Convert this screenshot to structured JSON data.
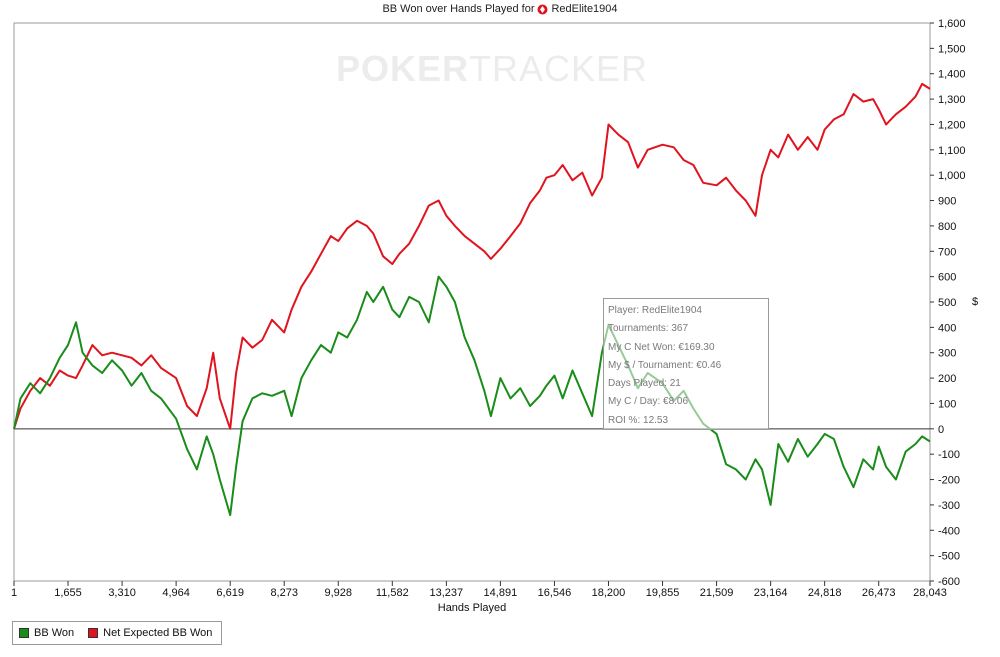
{
  "title": "BB Won over Hands Played for",
  "player_name": "RedElite1904",
  "watermark": {
    "bold": "POKER",
    "light": "TRACKER"
  },
  "tooltip": {
    "lines": [
      "Player: RedElite1904",
      "Tournaments: 367",
      "My C Net Won: €169.30",
      "My $ / Tournament: €0.46",
      "Days Played: 21",
      "My C / Day: €8.06",
      "ROI %: 12.53"
    ]
  },
  "legend": {
    "items": [
      {
        "label": "BB Won",
        "color": "#1a8c1a"
      },
      {
        "label": "Net Expected BB Won",
        "color": "#e0141e"
      }
    ]
  },
  "chart_data": {
    "type": "line",
    "title": "BB Won over Hands Played for RedElite1904",
    "xlabel": "Hands Played",
    "ylabel": "$",
    "xlim": [
      1,
      28043
    ],
    "ylim": [
      -600,
      1600
    ],
    "x_ticks": [
      "1",
      "1,655",
      "3,310",
      "4,964",
      "6,619",
      "8,273",
      "9,928",
      "11,582",
      "13,237",
      "14,891",
      "16,546",
      "18,200",
      "19,855",
      "21,509",
      "23,164",
      "24,818",
      "26,473",
      "28,043"
    ],
    "y_ticks": [
      "-600",
      "-500",
      "-400",
      "-300",
      "-200",
      "-100",
      "0",
      "100",
      "200",
      "300",
      "400",
      "500",
      "600",
      "700",
      "800",
      "900",
      "1,000",
      "1,100",
      "1,200",
      "1,300",
      "1,400",
      "1,500",
      "1,600"
    ],
    "legend_position": "bottom-left",
    "grid": false,
    "series": [
      {
        "name": "BB Won",
        "color": "#1a8c1a",
        "x": [
          1,
          200,
          500,
          800,
          1100,
          1400,
          1655,
          1900,
          2100,
          2400,
          2700,
          3000,
          3310,
          3600,
          3900,
          4200,
          4500,
          4964,
          5300,
          5600,
          5900,
          6100,
          6300,
          6619,
          6800,
          7000,
          7300,
          7600,
          7900,
          8273,
          8500,
          8800,
          9100,
          9400,
          9700,
          9928,
          10200,
          10500,
          10800,
          11000,
          11300,
          11582,
          11800,
          12100,
          12400,
          12700,
          13000,
          13237,
          13500,
          13800,
          14100,
          14400,
          14600,
          14891,
          15200,
          15500,
          15800,
          16100,
          16300,
          16546,
          16800,
          17100,
          17400,
          17700,
          18000,
          18200,
          18500,
          18800,
          19100,
          19400,
          19855,
          20200,
          20500,
          20800,
          21100,
          21509,
          21800,
          22100,
          22400,
          22700,
          22900,
          23164,
          23400,
          23700,
          24000,
          24300,
          24600,
          24818,
          25100,
          25400,
          25700,
          26000,
          26300,
          26473,
          26700,
          27000,
          27300,
          27600,
          27800,
          28043
        ],
        "y": [
          0,
          120,
          180,
          140,
          200,
          280,
          330,
          420,
          300,
          250,
          220,
          270,
          230,
          170,
          220,
          150,
          120,
          40,
          -80,
          -160,
          -30,
          -100,
          -200,
          -340,
          -150,
          30,
          120,
          140,
          130,
          150,
          50,
          200,
          270,
          330,
          300,
          380,
          360,
          430,
          540,
          500,
          560,
          470,
          440,
          520,
          500,
          420,
          600,
          560,
          500,
          360,
          270,
          150,
          50,
          200,
          120,
          160,
          90,
          130,
          170,
          210,
          120,
          230,
          140,
          50,
          300,
          410,
          330,
          250,
          160,
          220,
          180,
          110,
          150,
          80,
          20,
          -20,
          -140,
          -160,
          -200,
          -120,
          -160,
          -300,
          -60,
          -130,
          -40,
          -110,
          -60,
          -20,
          -40,
          -150,
          -230,
          -120,
          -160,
          -70,
          -150,
          -200,
          -90,
          -60,
          -30,
          -50
        ]
      },
      {
        "name": "Net Expected BB Won",
        "color": "#e0141e",
        "x": [
          1,
          200,
          500,
          800,
          1100,
          1400,
          1655,
          1900,
          2100,
          2400,
          2700,
          3000,
          3310,
          3600,
          3900,
          4200,
          4500,
          4964,
          5300,
          5600,
          5900,
          6100,
          6300,
          6619,
          6800,
          7000,
          7300,
          7600,
          7900,
          8273,
          8500,
          8800,
          9100,
          9400,
          9700,
          9928,
          10200,
          10500,
          10800,
          11000,
          11300,
          11582,
          11800,
          12100,
          12400,
          12700,
          13000,
          13237,
          13500,
          13800,
          14100,
          14400,
          14600,
          14891,
          15200,
          15500,
          15800,
          16100,
          16300,
          16546,
          16800,
          17100,
          17400,
          17700,
          18000,
          18200,
          18500,
          18800,
          19100,
          19400,
          19855,
          20200,
          20500,
          20800,
          21100,
          21509,
          21800,
          22100,
          22400,
          22700,
          22900,
          23164,
          23400,
          23700,
          24000,
          24300,
          24600,
          24818,
          25100,
          25400,
          25700,
          26000,
          26300,
          26473,
          26700,
          27000,
          27300,
          27600,
          27800,
          28043
        ],
        "y": [
          0,
          80,
          150,
          200,
          170,
          230,
          210,
          200,
          250,
          330,
          290,
          300,
          290,
          280,
          250,
          290,
          240,
          200,
          90,
          50,
          160,
          300,
          120,
          0,
          220,
          360,
          320,
          350,
          430,
          380,
          470,
          560,
          620,
          690,
          760,
          740,
          790,
          820,
          800,
          770,
          680,
          650,
          690,
          730,
          800,
          880,
          900,
          840,
          800,
          760,
          730,
          700,
          670,
          710,
          760,
          810,
          890,
          940,
          990,
          1000,
          1040,
          980,
          1010,
          920,
          990,
          1200,
          1160,
          1130,
          1030,
          1100,
          1120,
          1110,
          1060,
          1040,
          970,
          960,
          990,
          940,
          900,
          840,
          1000,
          1100,
          1070,
          1160,
          1100,
          1150,
          1100,
          1180,
          1220,
          1240,
          1320,
          1290,
          1300,
          1260,
          1200,
          1240,
          1270,
          1310,
          1360,
          1340
        ]
      }
    ]
  }
}
